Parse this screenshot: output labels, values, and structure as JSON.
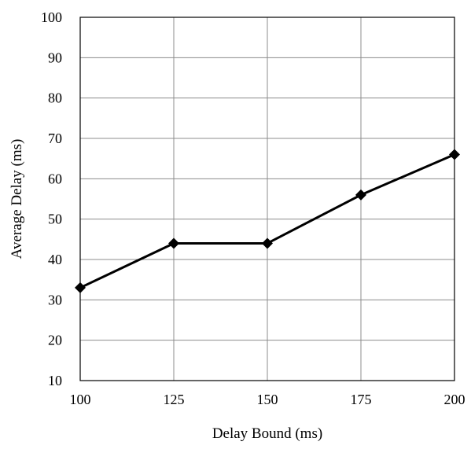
{
  "chart_data": {
    "type": "line",
    "title": "",
    "xlabel": "Delay Bound (ms)",
    "ylabel": "Average Delay (ms)",
    "x": [
      100,
      125,
      150,
      175,
      200
    ],
    "series": [
      {
        "values": [
          33,
          44,
          44,
          56,
          66
        ]
      }
    ],
    "xlim": [
      100,
      200
    ],
    "ylim": [
      10,
      100
    ],
    "xticks": [
      "100",
      "125",
      "150",
      "175",
      "200"
    ],
    "yticks": [
      "10",
      "20",
      "30",
      "40",
      "50",
      "60",
      "70",
      "80",
      "90",
      "100"
    ],
    "grid": true,
    "legend": "none",
    "marker": "diamond",
    "line_color": "#000000"
  }
}
